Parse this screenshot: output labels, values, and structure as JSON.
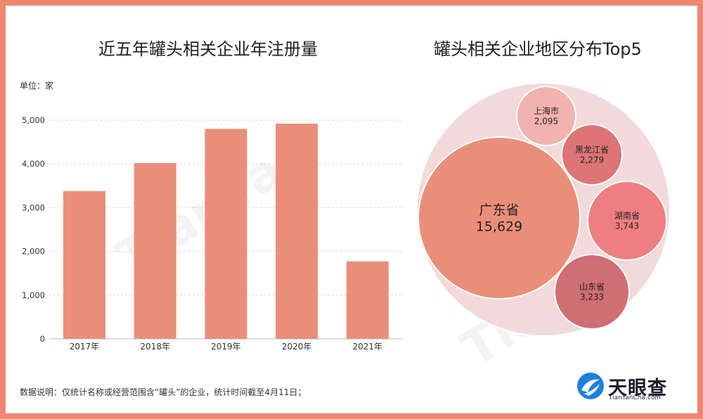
{
  "left_chart_title": "近五年罐头相关企业年注册量",
  "right_chart_title": "罐头相关企业地区分布Top5",
  "unit_label": "单位：家",
  "footnote": "数据说明：仅统计名称或经营范围含“罐头”的企业，统计时间截至4月11日；",
  "logo": {
    "name": "天眼查",
    "domain": "TianYanCha.com"
  },
  "colors": {
    "frame": "#f08670",
    "bar": "#eb8e79",
    "gridline": "#d8d8d8",
    "bubble_outer": "#f3dada"
  },
  "chart_data": [
    {
      "type": "bar",
      "title": "近五年罐头相关企业年注册量",
      "categories": [
        "2017年",
        "2018年",
        "2019年",
        "2020年",
        "2021年"
      ],
      "values": [
        3380,
        4020,
        4800,
        4920,
        1770
      ],
      "ylim": [
        0,
        5000
      ],
      "yticks": [
        0,
        1000,
        2000,
        3000,
        4000,
        5000
      ],
      "ytick_labels": [
        "0",
        "1,000",
        "2,000",
        "3,000",
        "4,000",
        "5,000"
      ],
      "unit": "单位：家",
      "grid": true
    },
    {
      "type": "bubble",
      "title": "罐头相关企业地区分布Top5",
      "items": [
        {
          "label": "广东省",
          "value": 15629,
          "value_label": "15,629",
          "color": "#eb8e79"
        },
        {
          "label": "上海市",
          "value": 2095,
          "value_label": "2,095",
          "color": "#f2b2ad"
        },
        {
          "label": "黑龙江省",
          "value": 2279,
          "value_label": "2,279",
          "color": "#dd7476"
        },
        {
          "label": "湖南省",
          "value": 3743,
          "value_label": "3,743",
          "color": "#ee7e80"
        },
        {
          "label": "山东省",
          "value": 3233,
          "value_label": "3,233",
          "color": "#cf6e73"
        }
      ]
    }
  ]
}
